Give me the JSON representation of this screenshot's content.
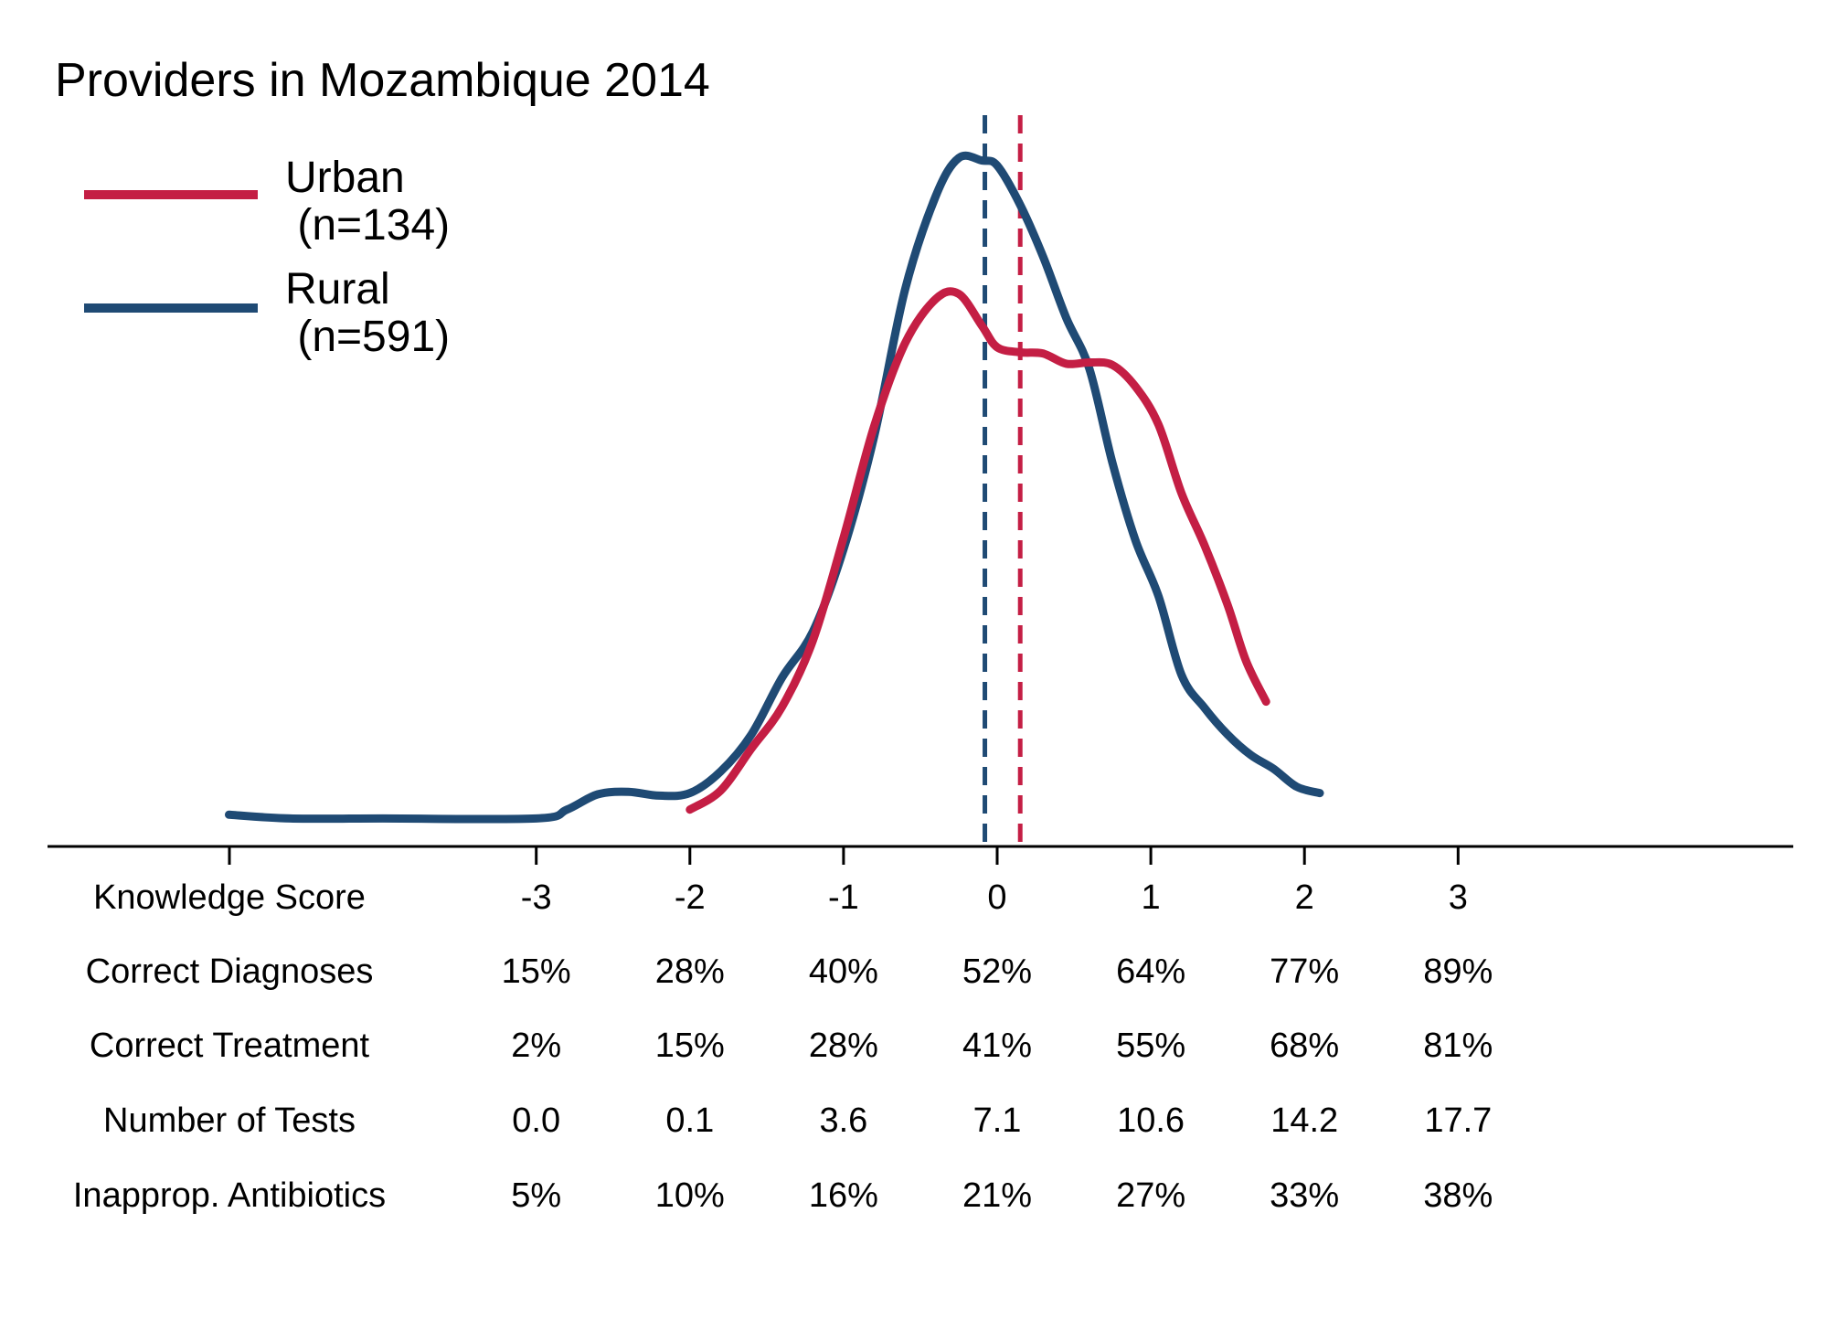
{
  "colors": {
    "urban": "#c41e44",
    "rural": "#1f4a74",
    "axis": "#000000",
    "background": "#ffffff"
  },
  "chart_data": {
    "type": "line",
    "title": "Providers in Mozambique 2014",
    "x_axis_label": "Knowledge Score",
    "xlim": [
      -5.0,
      5.1
    ],
    "ylim": [
      0,
      0.58
    ],
    "x_ticks": [
      -3,
      -2,
      -1,
      0,
      1,
      2,
      3
    ],
    "x_tick_labels": [
      "-3",
      "-2",
      "-1",
      "0",
      "1",
      "2",
      "3"
    ],
    "legend_position": "top-left",
    "y_axis_shown": false,
    "grid": false,
    "series": [
      {
        "name": "Urban",
        "name_line1": "Urban",
        "name_line2": " (n=134)",
        "color": "#c41e44",
        "mean_line": 0.15,
        "points": [
          [
            -2.0,
            0.029
          ],
          [
            -1.8,
            0.044
          ],
          [
            -1.6,
            0.077
          ],
          [
            -1.4,
            0.11
          ],
          [
            -1.2,
            0.162
          ],
          [
            -1.0,
            0.243
          ],
          [
            -0.8,
            0.331
          ],
          [
            -0.6,
            0.396
          ],
          [
            -0.4,
            0.431
          ],
          [
            -0.25,
            0.435
          ],
          [
            -0.1,
            0.41
          ],
          [
            0.0,
            0.393
          ],
          [
            0.15,
            0.389
          ],
          [
            0.3,
            0.388
          ],
          [
            0.45,
            0.38
          ],
          [
            0.6,
            0.381
          ],
          [
            0.75,
            0.379
          ],
          [
            0.9,
            0.362
          ],
          [
            1.05,
            0.332
          ],
          [
            1.2,
            0.278
          ],
          [
            1.35,
            0.237
          ],
          [
            1.5,
            0.19
          ],
          [
            1.62,
            0.146
          ],
          [
            1.75,
            0.114
          ]
        ]
      },
      {
        "name": "Rural",
        "name_line1": "Rural",
        "name_line2": " (n=591)",
        "color": "#1f4a74",
        "mean_line": -0.08,
        "points": [
          [
            -5.0,
            0.025
          ],
          [
            -4.6,
            0.022
          ],
          [
            -4.0,
            0.022
          ],
          [
            -3.0,
            0.022
          ],
          [
            -2.8,
            0.029
          ],
          [
            -2.6,
            0.041
          ],
          [
            -2.4,
            0.043
          ],
          [
            -2.2,
            0.04
          ],
          [
            -2.0,
            0.042
          ],
          [
            -1.8,
            0.059
          ],
          [
            -1.6,
            0.088
          ],
          [
            -1.4,
            0.133
          ],
          [
            -1.2,
            0.169
          ],
          [
            -1.0,
            0.234
          ],
          [
            -0.8,
            0.323
          ],
          [
            -0.6,
            0.438
          ],
          [
            -0.4,
            0.512
          ],
          [
            -0.25,
            0.542
          ],
          [
            -0.1,
            0.54
          ],
          [
            0.0,
            0.536
          ],
          [
            0.15,
            0.505
          ],
          [
            0.3,
            0.464
          ],
          [
            0.45,
            0.416
          ],
          [
            0.6,
            0.376
          ],
          [
            0.75,
            0.302
          ],
          [
            0.9,
            0.241
          ],
          [
            1.05,
            0.197
          ],
          [
            1.2,
            0.135
          ],
          [
            1.35,
            0.109
          ],
          [
            1.5,
            0.088
          ],
          [
            1.65,
            0.072
          ],
          [
            1.8,
            0.061
          ],
          [
            1.95,
            0.047
          ],
          [
            2.1,
            0.042
          ]
        ]
      }
    ],
    "table": {
      "rows": [
        {
          "label": "Correct Diagnoses",
          "values": [
            "15%",
            "28%",
            "40%",
            "52%",
            "64%",
            "77%",
            "89%"
          ]
        },
        {
          "label": "Correct Treatment",
          "values": [
            "2%",
            "15%",
            "28%",
            "41%",
            "55%",
            "68%",
            "81%"
          ]
        },
        {
          "label": "Number of Tests",
          "values": [
            "0.0",
            "0.1",
            "3.6",
            "7.1",
            "10.6",
            "14.2",
            "17.7"
          ]
        },
        {
          "label": "Inapprop. Antibiotics",
          "values": [
            "5%",
            "10%",
            "16%",
            "21%",
            "27%",
            "33%",
            "38%"
          ]
        }
      ]
    }
  }
}
